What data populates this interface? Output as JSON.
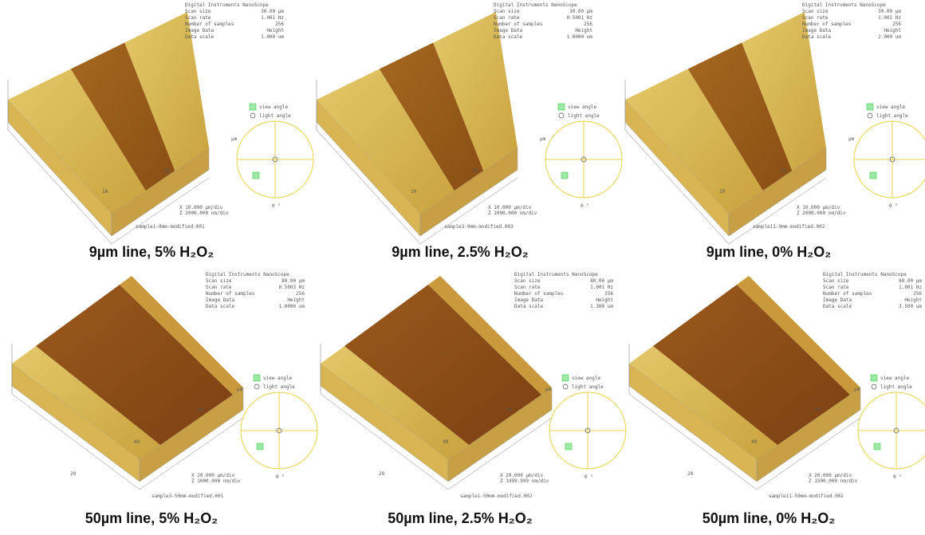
{
  "figure": {
    "panels": [
      {
        "caption": "9µm line, 5% H₂O₂",
        "header": {
          "title": "Digital Instruments NanoScope",
          "rows": [
            [
              "Scan size",
              "30.00 µm"
            ],
            [
              "Scan rate",
              "1.001 Hz"
            ],
            [
              "Number of samples",
              "256"
            ],
            [
              "Image Data",
              "Height"
            ],
            [
              "Data scale",
              "1.000 um"
            ]
          ]
        },
        "view_angle": "view angle",
        "light_angle": "light angle",
        "angle_label": "0 °",
        "axis_labels": [
          "µm",
          "20",
          "10"
        ],
        "scale": [
          "X 10.000 µm/div",
          "Z 2000.000 nm/div"
        ],
        "file": "sample1-9mm-modified.001"
      },
      {
        "caption": "9µm line, 2.5% H₂O₂",
        "header": {
          "title": "Digital Instruments NanoScope",
          "rows": [
            [
              "Scan size",
              "30.00 µm"
            ],
            [
              "Scan rate",
              "0.5001 Hz"
            ],
            [
              "Number of samples",
              "256"
            ],
            [
              "Image Data",
              "Height"
            ],
            [
              "Data scale",
              "1.0000 um"
            ]
          ]
        },
        "view_angle": "view angle",
        "light_angle": "light angle",
        "angle_label": "0 °",
        "axis_labels": [
          "µm",
          "20",
          "10"
        ],
        "scale": [
          "X 10.000 µm/div",
          "Z 1000.000 nm/div"
        ],
        "file": "sample3-9mm-modified.003"
      },
      {
        "caption": "9µm line, 0% H₂O₂",
        "header": {
          "title": "Digital Instruments NanoScope",
          "rows": [
            [
              "Scan size",
              "30.00 µm"
            ],
            [
              "Scan rate",
              "1.001 Hz"
            ],
            [
              "Number of samples",
              "256"
            ],
            [
              "Image Data",
              "Height"
            ],
            [
              "Data scale",
              "2.000 um"
            ]
          ]
        },
        "view_angle": "view angle",
        "light_angle": "light angle",
        "angle_label": "0 °",
        "axis_labels": [
          "µm",
          "20",
          "10"
        ],
        "scale": [
          "X 10.000 µm/div",
          "Z 2000.000 nm/div"
        ],
        "file": "sample11-9mm-modified.002"
      },
      {
        "caption": "50µm line, 5% H₂O₂",
        "header": {
          "title": "Digital Instruments NanoScope",
          "rows": [
            [
              "Scan size",
              "80.00 µm"
            ],
            [
              "Scan rate",
              "0.5003 Hz"
            ],
            [
              "Number of samples",
              "256"
            ],
            [
              "Image Data",
              "Height"
            ],
            [
              "Data scale",
              "1.0000 um"
            ]
          ]
        },
        "view_angle": "view angle",
        "light_angle": "light angle",
        "angle_label": "0 °",
        "axis_labels": [
          "µm",
          "60",
          "40",
          "20"
        ],
        "scale": [
          "X 20.000 µm/div",
          "Z 1000.000 nm/div"
        ],
        "file": "sample3-50mm-modified.001"
      },
      {
        "caption": "50µm line, 2.5% H₂O₂",
        "header": {
          "title": "Digital Instruments NanoScope",
          "rows": [
            [
              "Scan size",
              "80.00 µm"
            ],
            [
              "Scan rate",
              "1.001 Hz"
            ],
            [
              "Number of samples",
              "256"
            ],
            [
              "Image Data",
              "Height"
            ],
            [
              "Data scale",
              "1.300 um"
            ]
          ]
        },
        "view_angle": "view angle",
        "light_angle": "light angle",
        "angle_label": "0 °",
        "axis_labels": [
          "µm",
          "60",
          "40",
          "20"
        ],
        "scale": [
          "X 20.000 µm/div",
          "Z 1499.999 nm/div"
        ],
        "file": "sample1-50mm-modified.002"
      },
      {
        "caption": "50µm line, 0% H₂O₂",
        "header": {
          "title": "Digital Instruments NanoScope",
          "rows": [
            [
              "Scan size",
              "80.00 µm"
            ],
            [
              "Scan rate",
              "1.001 Hz"
            ],
            [
              "Number of samples",
              "256"
            ],
            [
              "Image Data",
              "Height"
            ],
            [
              "Data scale",
              "3.500 um"
            ]
          ]
        },
        "view_angle": "view angle",
        "light_angle": "light angle",
        "angle_label": "0 °",
        "axis_labels": [
          "µm",
          "60",
          "40",
          "20"
        ],
        "scale": [
          "X 20.000 µm/div",
          "Z 1500.000 nm/div"
        ],
        "file": "sample11-50mm-modified.002"
      }
    ]
  }
}
